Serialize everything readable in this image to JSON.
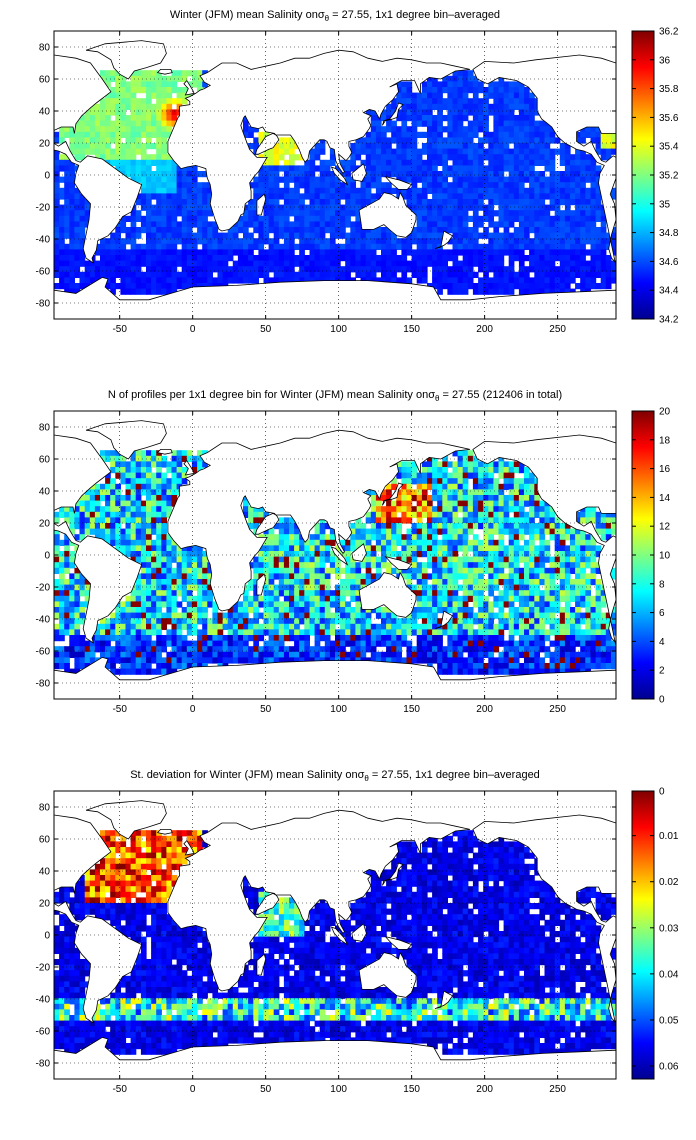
{
  "figure": {
    "longitude_ticks": [
      "-50",
      "0",
      "50",
      "100",
      "150",
      "200",
      "250"
    ],
    "latitude_ticks": [
      "80",
      "60",
      "40",
      "20",
      "0",
      "-20",
      "-40",
      "-60",
      "-80"
    ],
    "colormap": [
      "#00008f",
      "#0000ff",
      "#0080ff",
      "#00ffff",
      "#80ff80",
      "#ffff00",
      "#ff8000",
      "#ff0000",
      "#800000"
    ],
    "land_color": "#ffffff",
    "coastline_color": "#000000"
  },
  "panels": [
    {
      "title_prefix": "Winter (JFM) mean Salinity on",
      "sigma": "σ",
      "sigma_sub": "θ",
      "title_suffix": " = 27.55, 1x1 degree bin–averaged",
      "colorbar_ticks": [
        "36.2",
        "36",
        "35.8",
        "35.6",
        "35.4",
        "35.2",
        "35",
        "34.8",
        "34.6",
        "34.4",
        "34.2"
      ]
    },
    {
      "title_prefix": "N of profiles per 1x1 degree bin for Winter (JFM) mean Salinity on",
      "sigma": "σ",
      "sigma_sub": "θ",
      "title_suffix": " = 27.55 (212406 in total)",
      "colorbar_ticks": [
        "20",
        "18",
        "16",
        "14",
        "12",
        "10",
        "8",
        "6",
        "4",
        "2",
        "0"
      ]
    },
    {
      "title_prefix": "St. deviation for Winter (JFM) mean Salinity on",
      "sigma": "σ",
      "sigma_sub": "θ",
      "title_suffix": " = 27.55, 1x1 degree bin–averaged",
      "colorbar_ticks": [
        "0.06",
        "0.05",
        "0.04",
        "0.03",
        "0.02",
        "0.01",
        "0"
      ]
    }
  ]
}
